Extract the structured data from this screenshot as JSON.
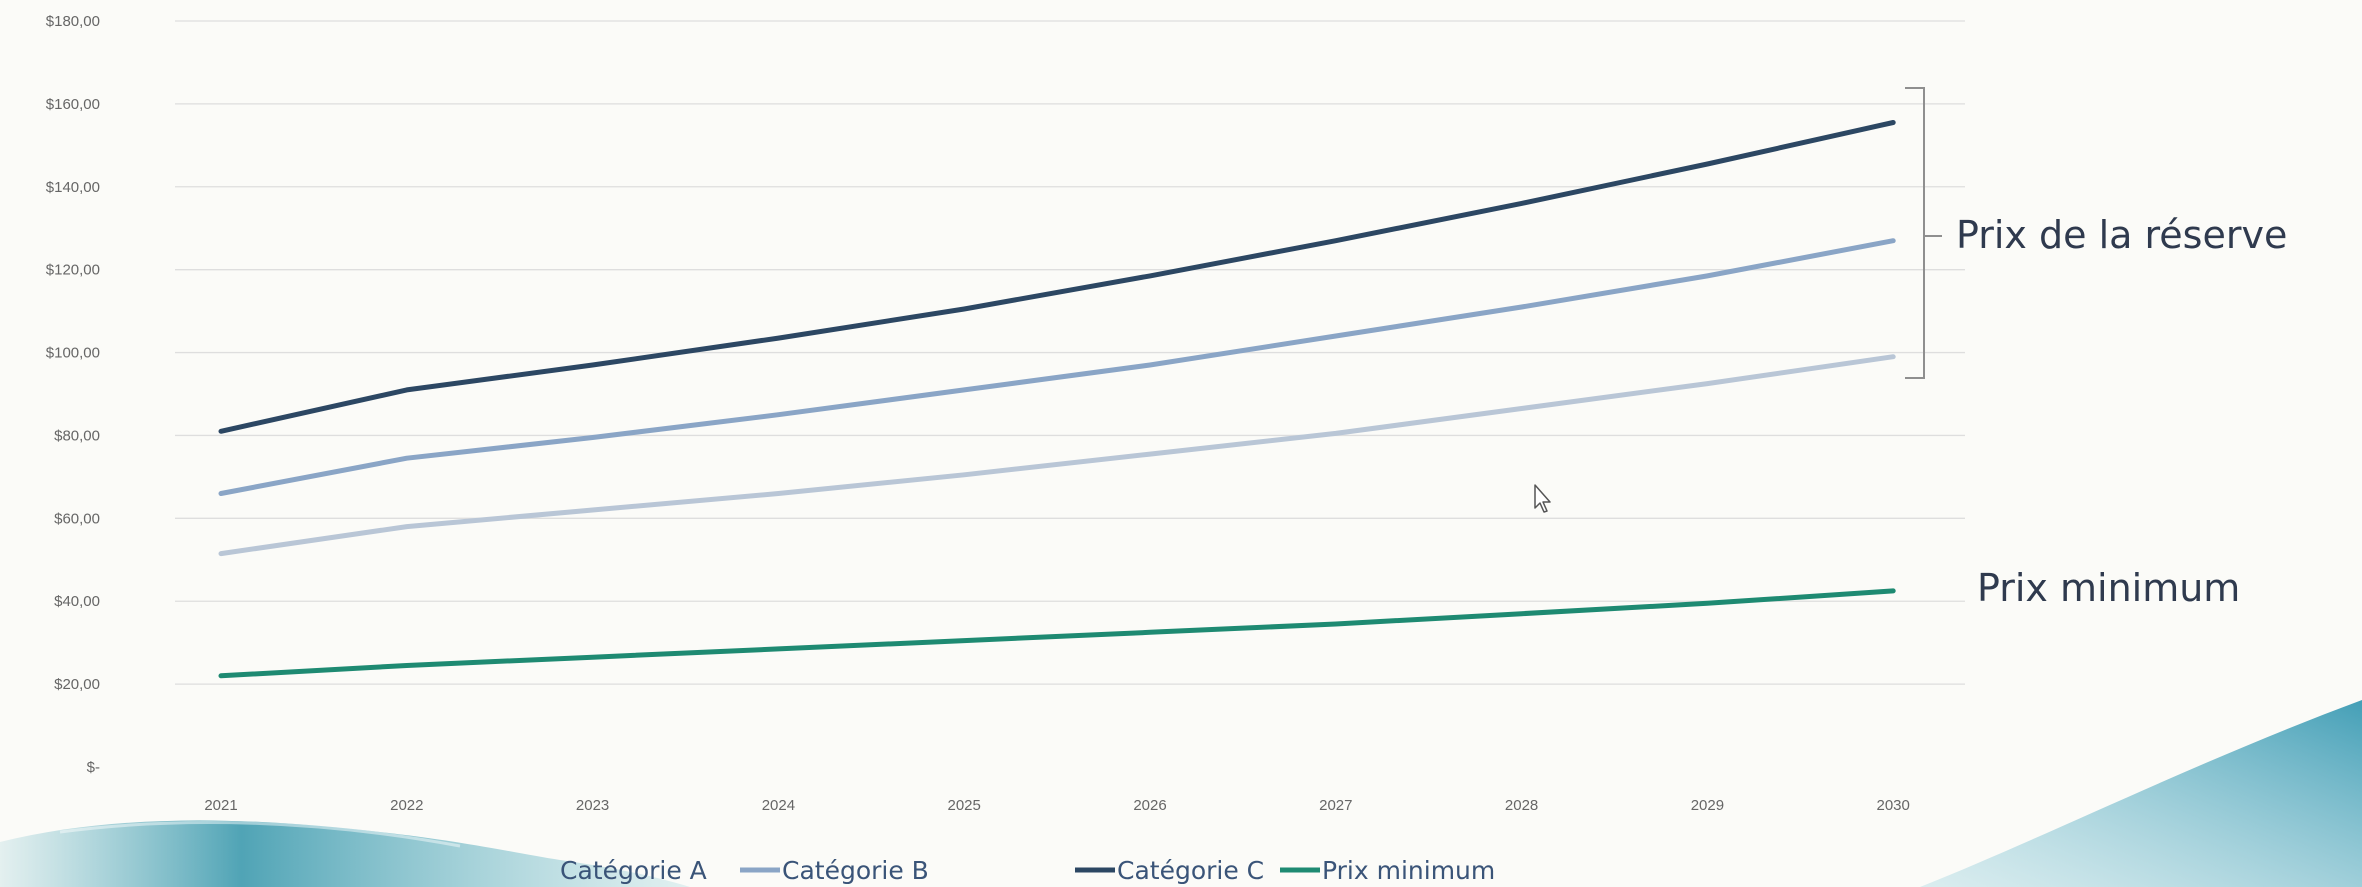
{
  "chart_data": {
    "type": "line",
    "title": "",
    "xlabel": "",
    "ylabel": "",
    "categories": [
      "2021",
      "2022",
      "2023",
      "2024",
      "2025",
      "2026",
      "2027",
      "2028",
      "2029",
      "2030"
    ],
    "ylim": [
      0,
      180
    ],
    "y_tick_labels": [
      "$-",
      "$20,00",
      "$40,00",
      "$60,00",
      "$80,00",
      "$100,00",
      "$120,00",
      "$140,00",
      "$160,00",
      "$180,00"
    ],
    "grid": true,
    "legend_position": "bottom",
    "series": [
      {
        "name": "Catégorie A",
        "color": "#b9c6d6",
        "values": [
          51.5,
          58,
          62,
          66,
          70.5,
          75.5,
          80.5,
          86.5,
          92.5,
          99
        ]
      },
      {
        "name": "Catégorie B",
        "color": "#8aa5c6",
        "values": [
          66,
          74.5,
          79.5,
          85,
          91,
          97,
          104,
          111,
          118.5,
          127
        ]
      },
      {
        "name": "Catégorie C",
        "color": "#2c4763",
        "values": [
          81,
          91,
          97,
          103.5,
          110.5,
          118.5,
          127,
          136,
          145.5,
          155.5
        ]
      },
      {
        "name": "Prix minimum",
        "color": "#1e8a72",
        "values": [
          22,
          24.5,
          26.5,
          28.5,
          30.5,
          32.5,
          34.5,
          37,
          39.5,
          42.5
        ]
      }
    ],
    "annotations": {
      "reserve_label": "Prix de la réserve",
      "minimum_label": "Prix minimum"
    },
    "legend_text_color": "#3a5478"
  }
}
